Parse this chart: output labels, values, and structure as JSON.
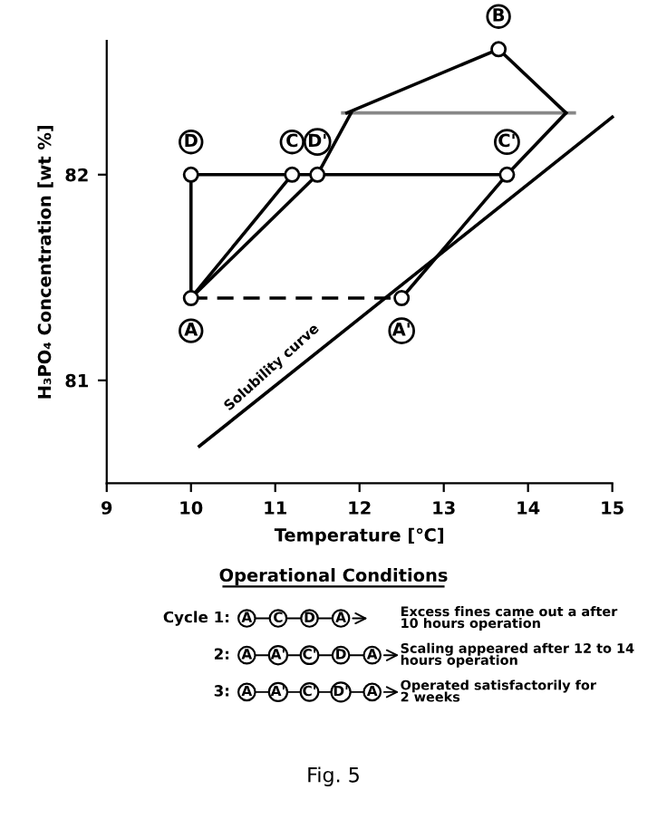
{
  "chart_data": {
    "type": "line",
    "xlabel": "Temperature [℃]",
    "ylabel": "H₃PO₄ Concentration [wt %]",
    "xlim": [
      9,
      15
    ],
    "ylim": [
      80.5,
      82.65
    ],
    "xticks": [
      9,
      10,
      11,
      12,
      13,
      14,
      15
    ],
    "yticks": [
      81,
      82
    ],
    "grid": false,
    "legend": false,
    "series": [
      {
        "color": "#000000",
        "x": [
          10.1,
          15.0
        ],
        "values": [
          80.68,
          82.28
        ],
        "line_style": "solid"
      },
      {
        "color": "#000000",
        "x": [
          10,
          12.5
        ],
        "values": [
          81.4,
          81.4
        ],
        "line_style": "dashed"
      },
      {
        "color": "#000000",
        "x": [
          10,
          10
        ],
        "values": [
          82,
          81.4
        ],
        "line_style": "solid"
      },
      {
        "color": "#000000",
        "x": [
          10,
          11.2
        ],
        "values": [
          81.4,
          82
        ],
        "line_style": "solid"
      },
      {
        "color": "#000000",
        "x": [
          11.5,
          10
        ],
        "values": [
          82,
          81.4
        ],
        "line_style": "solid"
      },
      {
        "color": "#000000",
        "x": [
          13.75,
          10
        ],
        "values": [
          82,
          82
        ],
        "line_style": "solid"
      },
      {
        "color": "#000000",
        "x": [
          12.5,
          13.75
        ],
        "values": [
          81.4,
          82
        ],
        "line_style": "solid"
      },
      {
        "color": "#888888",
        "x": [
          11.8,
          14.55
        ],
        "values": [
          82.3,
          82.3
        ],
        "line_style": "solid"
      },
      {
        "color": "#000000",
        "x": [
          13.65,
          11.85
        ],
        "values": [
          82.61,
          82.3
        ],
        "line_style": "solid"
      },
      {
        "color": "#000000",
        "x": [
          13.65,
          14.45
        ],
        "values": [
          82.61,
          82.3
        ],
        "line_style": "solid"
      },
      {
        "color": "#000000",
        "x": [
          11.9,
          11.5
        ],
        "values": [
          82.3,
          82
        ],
        "line_style": "solid"
      },
      {
        "color": "#000000",
        "x": [
          14.45,
          13.75
        ],
        "values": [
          82.3,
          82
        ],
        "line_style": "solid"
      },
      {
        "type": "scatter",
        "color": "#000000",
        "marker": "circle",
        "x": [
          10,
          10,
          11.2,
          11.5,
          13.75,
          12.5,
          13.65
        ],
        "values": [
          81.4,
          82,
          82,
          82,
          82,
          81.4,
          82.61
        ]
      }
    ],
    "annotations": [
      {
        "text": "A",
        "x": 10,
        "y": 81.4
      },
      {
        "text": "D",
        "x": 10,
        "y": 82
      },
      {
        "text": "C",
        "x": 11.2,
        "y": 82
      },
      {
        "text": "D'",
        "x": 11.5,
        "y": 82
      },
      {
        "text": "C'",
        "x": 13.75,
        "y": 82
      },
      {
        "text": "A'",
        "x": 12.5,
        "y": 81.4
      },
      {
        "text": "B",
        "x": 13.65,
        "y": 82.61
      },
      "Solubility curve",
      "Operational Conditions",
      "Cycle 1:",
      "A C D A",
      "Excess fines came out a after\n10 hours operation",
      "2:",
      "A A' C' D A",
      "Scaling appeared after 12 to 14\nhours operation",
      "3:",
      "A A' C' D' A",
      "Operated satisfactorily for\n2 weeks",
      "Fig. 5"
    ]
  }
}
